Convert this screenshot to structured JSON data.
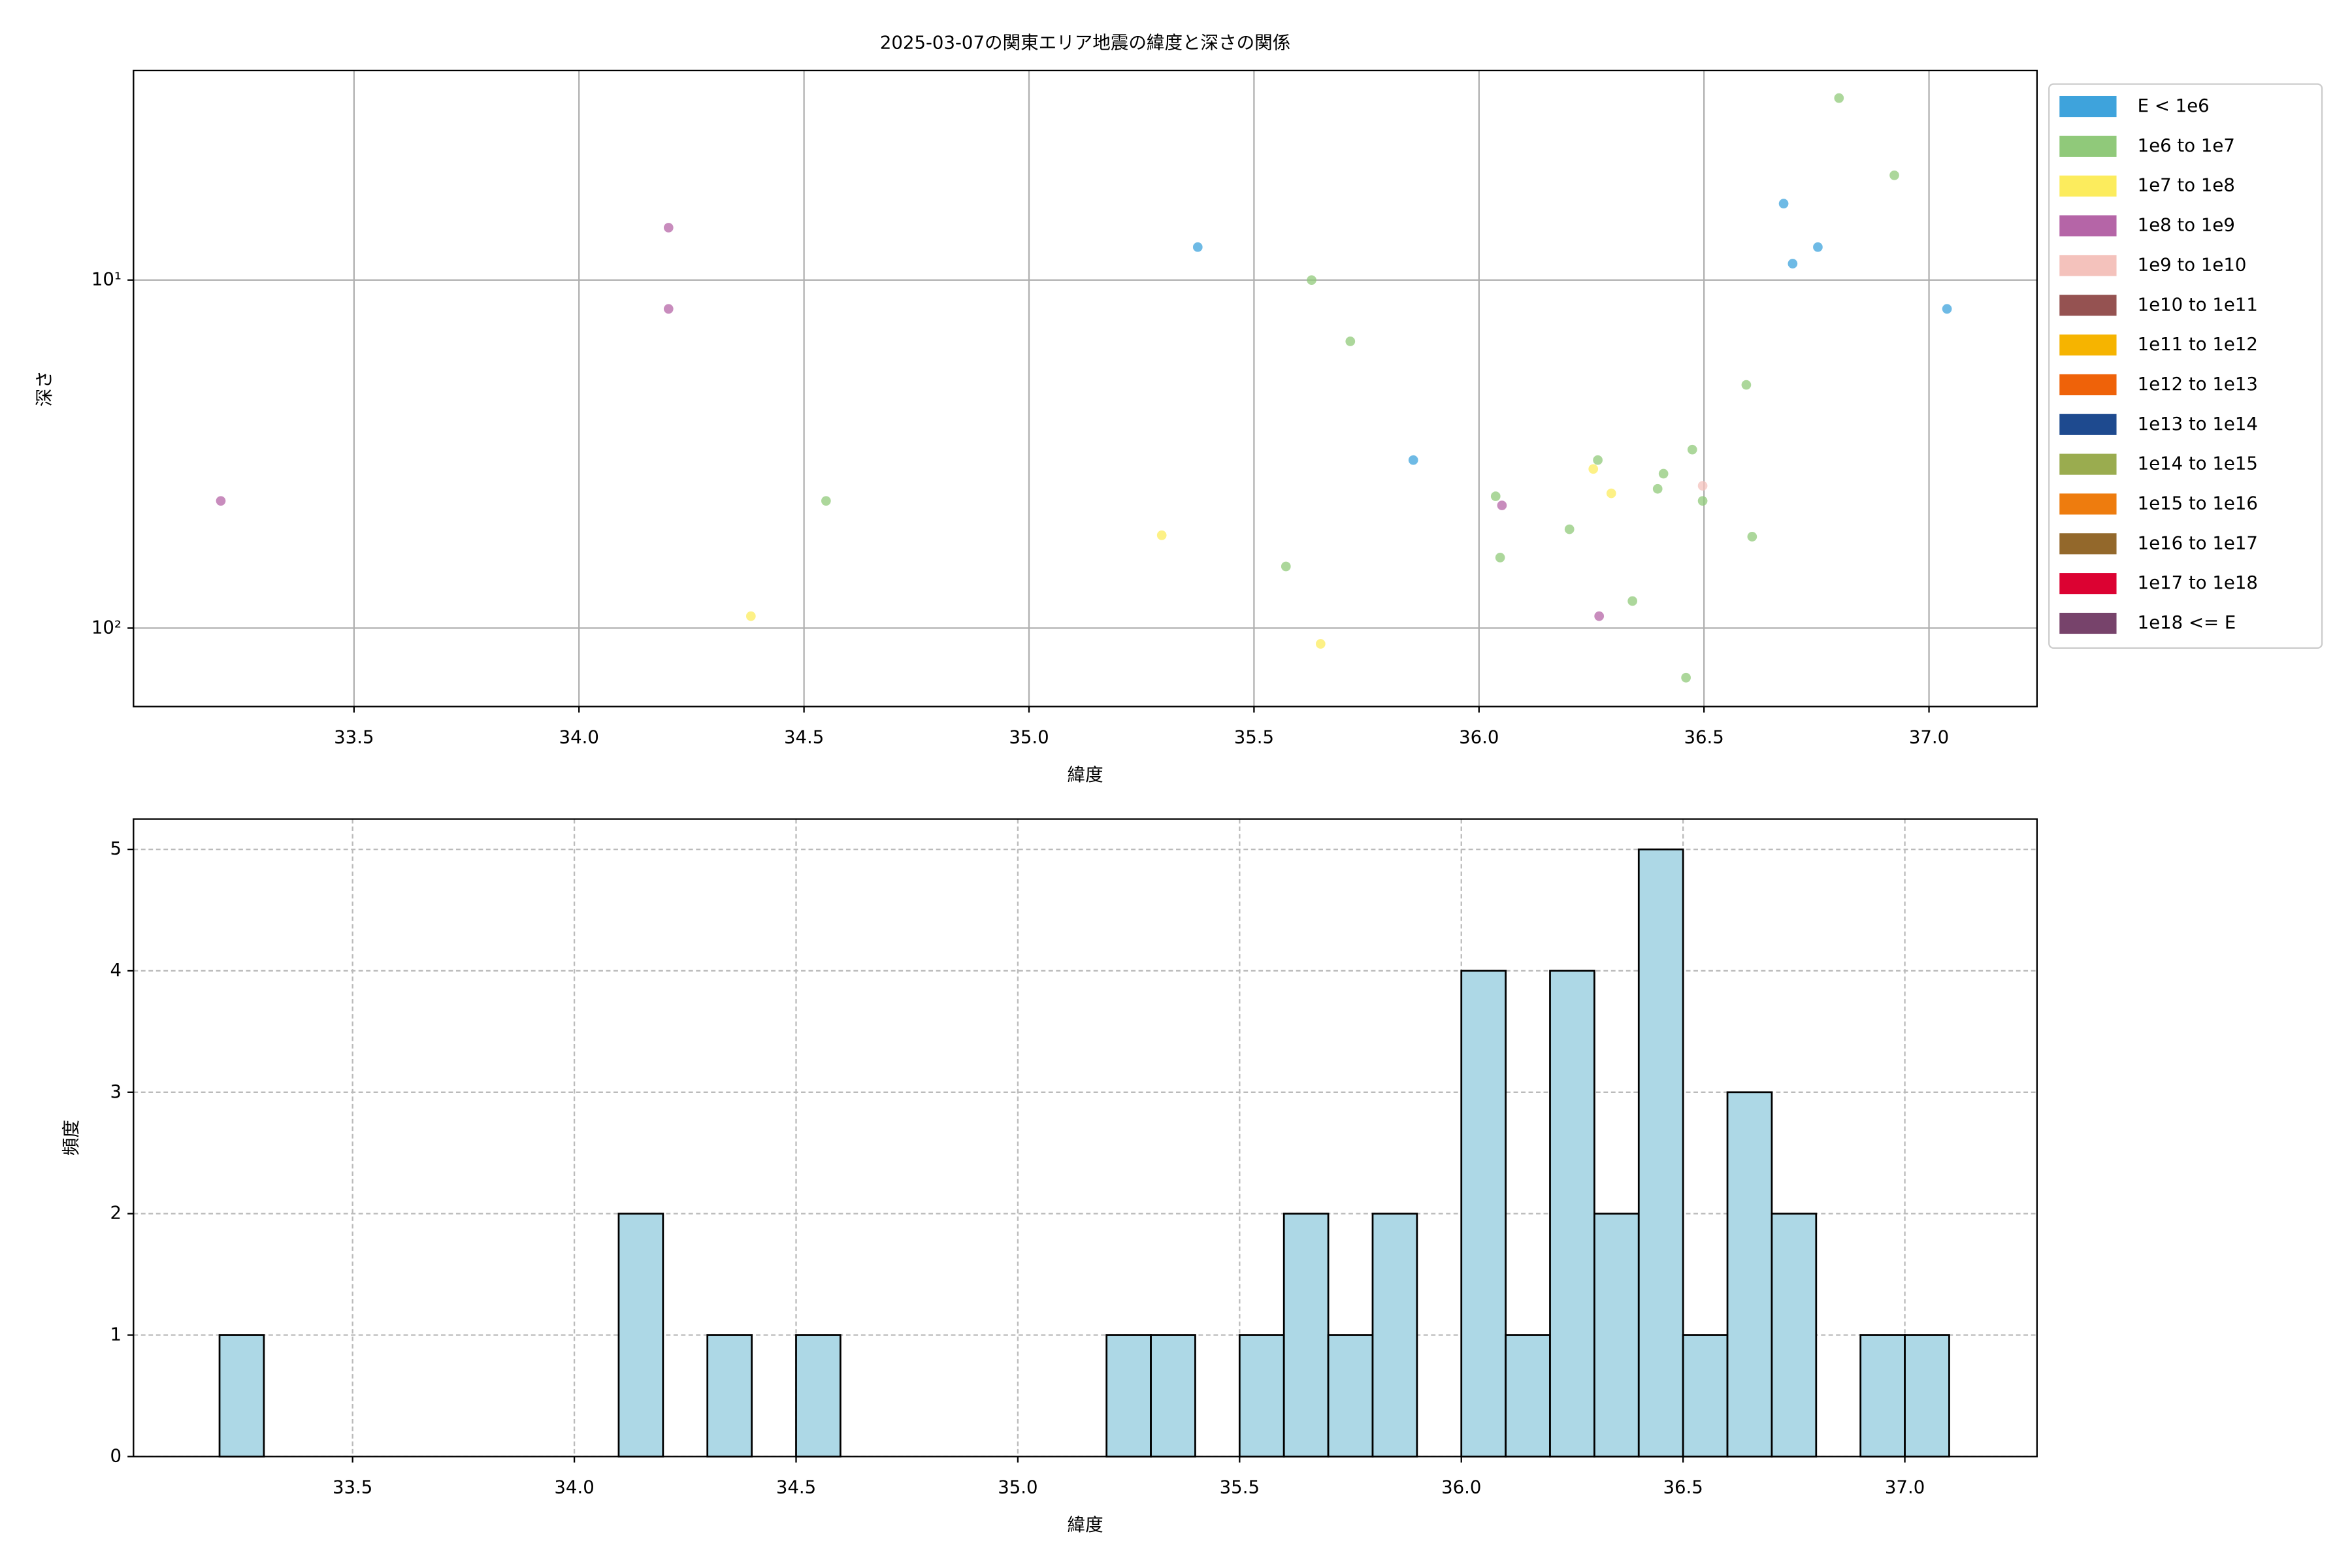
{
  "chart_data": [
    {
      "type": "scatter",
      "title": "2025-03-07の関東エリア地震の緯度と深さの関係",
      "x_label": "緯度",
      "y_label": "深さ",
      "xlim": [
        33.01,
        37.24
      ],
      "ylim": [
        2.5,
        168
      ],
      "y_scale": "log",
      "y_inverted": true,
      "xticks": [
        33.5,
        {
          "value": 34,
          "label": "34.0"
        },
        34.5,
        {
          "value": 35,
          "label": "35.0"
        },
        35.5,
        {
          "value": 36,
          "label": "36.0"
        },
        36.5,
        {
          "value": 37,
          "label": "37.0"
        }
      ],
      "yticks": [
        {
          "value": 10,
          "label": "10¹"
        },
        {
          "value": 100,
          "label": "10²"
        }
      ],
      "grid": true,
      "grid_style": "solid",
      "legend": "outside-right",
      "series": [
        {
          "name": "E < 1e6",
          "color": "#3ea3dc",
          "x": [
            35.375,
            35.854,
            36.677,
            36.697,
            36.753,
            37.04
          ],
          "values": [
            8.04,
            32.9,
            6.03,
            8.97,
            8.04,
            12.1
          ]
        },
        {
          "name": "1e6 to 1e7",
          "color": "#90c97a",
          "x": [
            36.8,
            36.923,
            35.628,
            35.714,
            34.549,
            36.037,
            36.047,
            36.201,
            36.264,
            36.397,
            36.41,
            36.474,
            36.497,
            36.594,
            36.607,
            35.571,
            36.341,
            36.46
          ],
          "values": [
            3.0,
            5.0,
            10,
            15.0,
            43.1,
            41.8,
            62.7,
            52,
            32.9,
            39.8,
            36,
            30.7,
            43.1,
            20.0,
            54.6,
            66.5,
            83.6,
            138.8
          ]
        },
        {
          "name": "1e7 to 1e8",
          "color": "#fcec5d",
          "x": [
            34.382,
            35.295,
            35.648,
            36.254,
            36.294
          ],
          "values": [
            92.4,
            54.1,
            111,
            34.9,
            41
          ]
        },
        {
          "name": "1e8 to 1e9",
          "color": "#b565a7",
          "x": [
            34.199,
            34.199,
            33.204,
            36.051,
            36.267
          ],
          "values": [
            7.07,
            12.1,
            43.1,
            44.4,
            92.4
          ]
        },
        {
          "name": "1e9 to 1e10",
          "color": "#f4c2bc",
          "x": [
            36.497
          ],
          "values": [
            39.0
          ]
        },
        {
          "name": "1e10 to 1e11",
          "color": "#955251",
          "x": [],
          "values": []
        },
        {
          "name": "1e11 to 1e12",
          "color": "#f6b400",
          "x": [],
          "values": []
        },
        {
          "name": "1e12 to 1e13",
          "color": "#ef6209",
          "x": [],
          "values": []
        },
        {
          "name": "1e13 to 1e14",
          "color": "#1e4a8f",
          "x": [],
          "values": []
        },
        {
          "name": "1e14 to 1e15",
          "color": "#9aac4f",
          "x": [],
          "values": []
        },
        {
          "name": "1e15 to 1e16",
          "color": "#ee7c0e",
          "x": [],
          "values": []
        },
        {
          "name": "1e16 to 1e17",
          "color": "#93682b",
          "x": [],
          "values": []
        },
        {
          "name": "1e17 to 1e18",
          "color": "#dc0232",
          "x": [],
          "values": []
        },
        {
          "name": "1e18 <= E",
          "color": "#77436b",
          "x": [],
          "values": []
        }
      ]
    },
    {
      "type": "histogram",
      "x_label": "緯度",
      "y_label": "頻度",
      "xlim": [
        33.006,
        37.298
      ],
      "ylim": [
        0,
        5.25
      ],
      "xticks": [
        33.5,
        {
          "value": 34,
          "label": "34.0"
        },
        34.5,
        {
          "value": 35,
          "label": "35.0"
        },
        35.5,
        {
          "value": 36,
          "label": "36.0"
        },
        36.5,
        {
          "value": 37,
          "label": "37.0"
        }
      ],
      "yticks": [
        0,
        1,
        2,
        3,
        4,
        5
      ],
      "grid": true,
      "grid_style": "dashed",
      "color": "#add8e6",
      "edgecolor": "#000000",
      "bins": [
        33.2,
        33.3,
        33.4,
        33.5,
        33.6,
        33.7,
        33.8,
        33.9,
        34.0,
        34.1,
        34.2,
        34.3,
        34.4,
        34.5,
        34.6,
        34.7,
        34.8,
        34.9,
        35.0,
        35.1,
        35.2,
        35.3,
        35.4,
        35.5,
        35.6,
        35.7,
        35.8,
        35.9,
        36.0,
        36.1,
        36.2,
        36.3,
        36.4,
        36.5,
        36.6,
        36.7,
        36.8,
        36.9,
        37.0,
        37.1
      ],
      "values": [
        1,
        0,
        0,
        0,
        0,
        0,
        0,
        0,
        0,
        2,
        0,
        1,
        0,
        1,
        0,
        0,
        0,
        0,
        0,
        0,
        1,
        1,
        0,
        1,
        2,
        1,
        2,
        0,
        4,
        1,
        4,
        2,
        5,
        1,
        3,
        2,
        0,
        1,
        1
      ]
    }
  ]
}
